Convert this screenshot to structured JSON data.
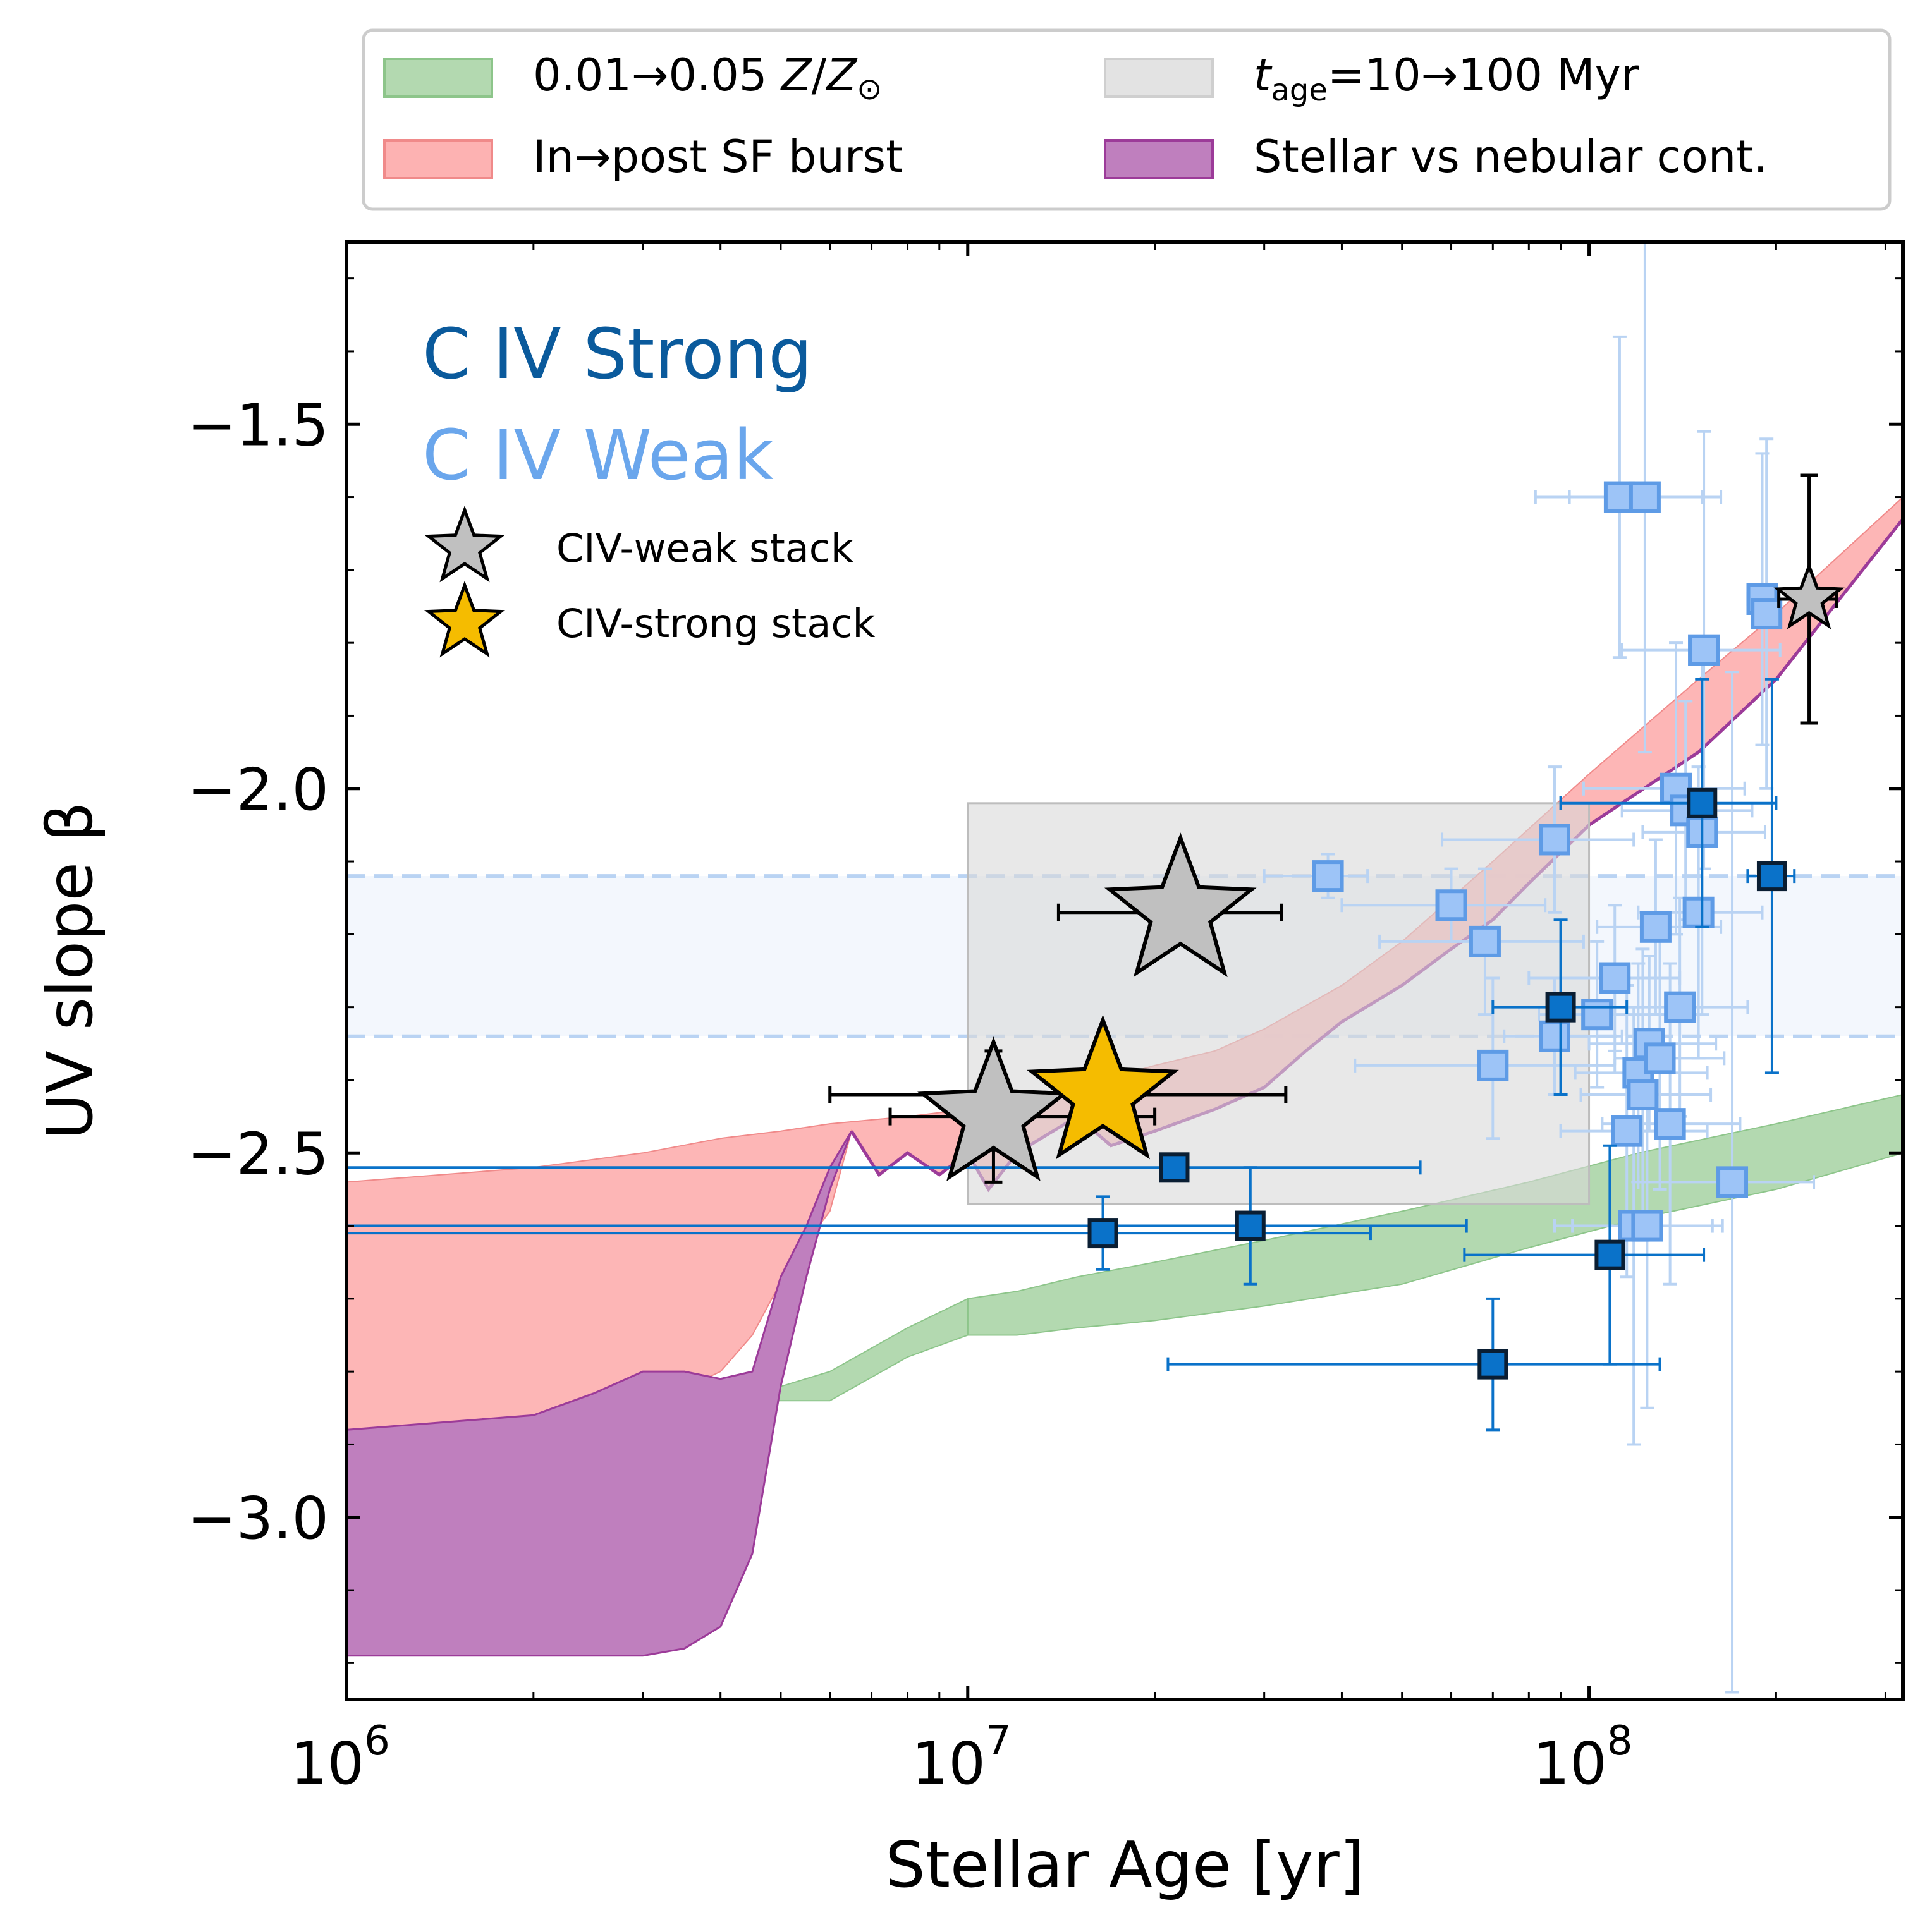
{
  "chart_data": {
    "type": "scatter",
    "xlabel": "Stellar Age [yr]",
    "ylabel": "UV slope β",
    "xscale": "log",
    "xlim": [
      1000000,
      320000000
    ],
    "ylim": [
      -3.25,
      -1.25
    ],
    "xticks": [
      {
        "value": 1000000,
        "base": "10",
        "exp": "6"
      },
      {
        "value": 10000000,
        "base": "10",
        "exp": "7"
      },
      {
        "value": 100000000,
        "base": "10",
        "exp": "8"
      }
    ],
    "yticks": [
      {
        "value": -1.5,
        "label": "−1.5"
      },
      {
        "value": -2.0,
        "label": "−2.0"
      },
      {
        "value": -2.5,
        "label": "−2.5"
      },
      {
        "value": -3.0,
        "label": "−3.0"
      }
    ],
    "text_labels": [
      {
        "text": "C IV Strong",
        "color": "#0a5a9c"
      },
      {
        "text": "C IV Weak",
        "color": "#6aa6ec"
      }
    ],
    "legend_top": [
      {
        "label": "0.01→0.05 Z/Z⊙",
        "color": "#b3d9b0",
        "edge": "#8dc58a"
      },
      {
        "label": "t_age=10→100 Myr",
        "color": "#e3e3e3",
        "edge": "#cfcfcf"
      },
      {
        "label": "In→post SF burst",
        "color": "#fdb2b2",
        "edge": "#f08a8a"
      },
      {
        "label": "Stellar vs nebular cont.",
        "color": "#bf7fbe",
        "edge": "#9c3b99"
      }
    ],
    "legend_inset": [
      {
        "label": "CIV-weak stack",
        "color": "#c0c0c0"
      },
      {
        "label": "CIV-strong stack",
        "color": "#f5bc00"
      }
    ],
    "weak_band": {
      "y_low": -2.34,
      "y_high": -2.12,
      "color": "#b9d3f3"
    },
    "age_box": {
      "x_low": 10000000,
      "x_high": 100000000,
      "y_low": -2.57,
      "y_high": -2.02
    },
    "metallicity_band": {
      "x": [
        10000000,
        12000000,
        15000000,
        20000000,
        30000000,
        50000000,
        80000000,
        120000000,
        200000000,
        320000000
      ],
      "upper": [
        -2.7,
        -2.69,
        -2.67,
        -2.65,
        -2.62,
        -2.58,
        -2.54,
        -2.5,
        -2.46,
        -2.42
      ],
      "lower": [
        -2.75,
        -2.75,
        -2.74,
        -2.73,
        -2.71,
        -2.68,
        -2.63,
        -2.59,
        -2.55,
        -2.5
      ]
    },
    "burst_band": {
      "x": [
        1000000,
        2000000,
        3000000,
        4000000,
        5000000,
        6000000,
        8000000,
        10000000,
        12000000,
        15000000,
        20000000,
        25000000,
        30000000,
        40000000,
        50000000,
        70000000,
        100000000,
        150000000,
        200000000,
        320000000
      ],
      "upper": [
        -2.54,
        -2.52,
        -2.5,
        -2.48,
        -2.47,
        -2.46,
        -2.45,
        -2.44,
        -2.43,
        -2.41,
        -2.38,
        -2.36,
        -2.33,
        -2.27,
        -2.21,
        -2.1,
        -1.98,
        -1.85,
        -1.76,
        -1.6
      ]
    },
    "burst_lower": {
      "x": [
        1000000,
        2000000,
        2500000,
        3000000,
        4000000,
        4500000,
        5200000,
        6000000,
        6500000,
        7200000,
        8000000,
        9000000,
        10000000,
        10800000,
        12000000,
        15000000,
        17000000,
        20000000,
        25000000,
        30000000,
        35000000,
        40000000,
        50000000,
        60000000,
        70000000,
        80000000,
        100000000,
        150000000,
        200000000,
        320000000
      ],
      "y": [
        -2.88,
        -2.87,
        -2.86,
        -2.85,
        -2.8,
        -2.75,
        -2.65,
        -2.58,
        -2.47,
        -2.53,
        -2.5,
        -2.53,
        -2.5,
        -2.55,
        -2.5,
        -2.45,
        -2.49,
        -2.47,
        -2.44,
        -2.41,
        -2.36,
        -2.32,
        -2.27,
        -2.22,
        -2.18,
        -2.13,
        -2.05,
        -1.95,
        -1.85,
        -1.63
      ]
    },
    "nebular_band": {
      "x": [
        1000000,
        2000000,
        2500000,
        3000000,
        3500000,
        4000000,
        4500000,
        5000000,
        5500000,
        6000000,
        6500000
      ],
      "upper": [
        -2.88,
        -2.86,
        -2.83,
        -2.8,
        -2.8,
        -2.81,
        -2.8,
        -2.67,
        -2.6,
        -2.52,
        -2.47
      ],
      "lower": [
        -3.19,
        -3.19,
        -3.19,
        -3.19,
        -3.18,
        -3.15,
        -3.05,
        -2.82,
        -2.67,
        -2.55,
        -2.47
      ]
    },
    "series": [
      {
        "name": "C IV Weak",
        "color": "#9dc4f7",
        "edge": "#5e9be6",
        "points": [
          {
            "x": 38000000,
            "y": -2.12,
            "xerr": [
              8000000,
              6000000
            ],
            "yerr": [
              0.03,
              0.03
            ]
          },
          {
            "x": 60000000,
            "y": -2.16,
            "xerr": [
              20000000,
              25000000
            ],
            "yerr": [
              0.05,
              0.05
            ]
          },
          {
            "x": 68000000,
            "y": -2.21,
            "xerr": [
              22000000,
              30000000
            ],
            "yerr": [
              0.1,
              0.1
            ]
          },
          {
            "x": 70000000,
            "y": -2.38,
            "xerr": [
              28000000,
              40000000
            ],
            "yerr": [
              0.1,
              0.12
            ]
          },
          {
            "x": 88000000,
            "y": -2.07,
            "xerr": [
              30000000,
              30000000
            ],
            "yerr": [
              0.1,
              0.1
            ]
          },
          {
            "x": 88000000,
            "y": -2.34,
            "xerr": [
              15000000,
              25000000
            ],
            "yerr": [
              0.08,
              0.08
            ]
          },
          {
            "x": 103000000,
            "y": -2.31,
            "xerr": [
              20000000,
              30000000
            ],
            "yerr": [
              0.1,
              0.1
            ]
          },
          {
            "x": 110000000,
            "y": -2.26,
            "xerr": [
              30000000,
              30000000
            ],
            "yerr": [
              0.1,
              0.1
            ]
          },
          {
            "x": 112000000,
            "y": -1.6,
            "xerr": [
              30000000,
              40000000
            ],
            "yerr": [
              0.22,
              0.22
            ]
          },
          {
            "x": 123000000,
            "y": -1.6,
            "xerr": [
              30000000,
              40000000
            ],
            "yerr": [
              0.35,
              0.35
            ]
          },
          {
            "x": 115000000,
            "y": -2.47,
            "xerr": [
              25000000,
              40000000
            ],
            "yerr": [
              0.2,
              0.2
            ]
          },
          {
            "x": 118000000,
            "y": -2.6,
            "xerr": [
              30000000,
              40000000
            ],
            "yerr": [
              0.3,
              0.3
            ]
          },
          {
            "x": 120000000,
            "y": -2.39,
            "xerr": [
              25000000,
              35000000
            ],
            "yerr": [
              0.15,
              0.15
            ]
          },
          {
            "x": 122000000,
            "y": -2.42,
            "xerr": [
              25000000,
              35000000
            ],
            "yerr": [
              0.2,
              0.2
            ]
          },
          {
            "x": 124000000,
            "y": -2.6,
            "xerr": [
              30000000,
              40000000
            ],
            "yerr": [
              0.25,
              0.25
            ]
          },
          {
            "x": 125000000,
            "y": -2.35,
            "xerr": [
              25000000,
              35000000
            ],
            "yerr": [
              0.12,
              0.12
            ]
          },
          {
            "x": 128000000,
            "y": -2.19,
            "xerr": [
              25000000,
              35000000
            ],
            "yerr": [
              0.12,
              0.12
            ]
          },
          {
            "x": 130000000,
            "y": -2.37,
            "xerr": [
              20000000,
              35000000
            ],
            "yerr": [
              0.18,
              0.18
            ]
          },
          {
            "x": 135000000,
            "y": -2.46,
            "xerr": [
              30000000,
              40000000
            ],
            "yerr": [
              0.22,
              0.22
            ]
          },
          {
            "x": 138000000,
            "y": -2.0,
            "xerr": [
              40000000,
              40000000
            ],
            "yerr": [
              0.2,
              0.2
            ]
          },
          {
            "x": 140000000,
            "y": -2.3,
            "xerr": [
              30000000,
              40000000
            ],
            "yerr": [
              0.15,
              0.15
            ]
          },
          {
            "x": 143000000,
            "y": -2.03,
            "xerr": [
              30000000,
              40000000
            ],
            "yerr": [
              0.15,
              0.15
            ]
          },
          {
            "x": 150000000,
            "y": -2.17,
            "xerr": [
              30000000,
              40000000
            ],
            "yerr": [
              0.2,
              0.2
            ]
          },
          {
            "x": 152000000,
            "y": -2.06,
            "xerr": [
              30000000,
              40000000
            ],
            "yerr": [
              0.25,
              0.25
            ]
          },
          {
            "x": 153000000,
            "y": -1.81,
            "xerr": [
              40000000,
              50000000
            ],
            "yerr": [
              0.3,
              0.3
            ]
          },
          {
            "x": 170000000,
            "y": -2.54,
            "xerr": [
              50000000,
              60000000
            ],
            "yerr": [
              0.7,
              0.7
            ]
          },
          {
            "x": 190000000,
            "y": -1.74,
            "xerr": [
              10000000,
              10000000
            ],
            "yerr": [
              0.2,
              0.2
            ]
          },
          {
            "x": 193000000,
            "y": -1.76,
            "xerr": [
              10000000,
              10000000
            ],
            "yerr": [
              0.24,
              0.24
            ]
          }
        ]
      },
      {
        "name": "C IV Strong",
        "color": "#0a72c9",
        "edge": "#0a1e33",
        "points": [
          {
            "x": 21500000,
            "y": -2.52,
            "xerr": [
              20500000,
              32000000
            ],
            "yerr": [
              0.01,
              0.01
            ]
          },
          {
            "x": 16500000,
            "y": -2.61,
            "xerr": [
              15500000,
              28000000
            ],
            "yerr": [
              0.05,
              0.05
            ]
          },
          {
            "x": 28500000,
            "y": -2.6,
            "xerr": [
              27500000,
              35000000
            ],
            "yerr": [
              0.08,
              0.08
            ]
          },
          {
            "x": 70000000,
            "y": -2.79,
            "xerr": [
              49000000,
              60000000
            ],
            "yerr": [
              0.09,
              0.09
            ]
          },
          {
            "x": 90000000,
            "y": -2.3,
            "xerr": [
              20000000,
              25000000
            ],
            "yerr": [
              0.12,
              0.12
            ]
          },
          {
            "x": 108000000,
            "y": -2.64,
            "xerr": [
              45000000,
              45000000
            ],
            "yerr": [
              0.15,
              0.15
            ]
          },
          {
            "x": 152000000,
            "y": -2.02,
            "xerr": [
              62000000,
              48000000
            ],
            "yerr": [
              0.17,
              0.17
            ]
          },
          {
            "x": 197000000,
            "y": -2.12,
            "xerr": [
              17000000,
              17000000
            ],
            "yerr": [
              0.27,
              0.27
            ]
          }
        ]
      }
    ],
    "stacks": [
      {
        "name": "CIV-weak stack",
        "x": 22000000,
        "y": -2.17,
        "xerr": [
          8000000,
          10000000
        ],
        "yerr": [
          0,
          0
        ],
        "color": "#c0c0c0",
        "size": "large"
      },
      {
        "name": "CIV-strong stack",
        "x": 16500000,
        "y": -2.42,
        "xerr": [
          10500000,
          16000000
        ],
        "yerr": [
          0,
          0
        ],
        "color": "#f5bc00",
        "size": "large"
      },
      {
        "name": "CIV-weak stack",
        "x": 11000000,
        "y": -2.45,
        "xerr": [
          3500000,
          9000000
        ],
        "yerr": [
          0.09,
          0.09
        ],
        "color": "#c0c0c0",
        "size": "large"
      },
      {
        "name": "CIV-weak stack",
        "x": 226000000,
        "y": -1.74,
        "xerr": [
          24000000,
          24000000
        ],
        "yerr": [
          0.17,
          0.17
        ],
        "color": "#c0c0c0",
        "size": "small"
      }
    ]
  }
}
